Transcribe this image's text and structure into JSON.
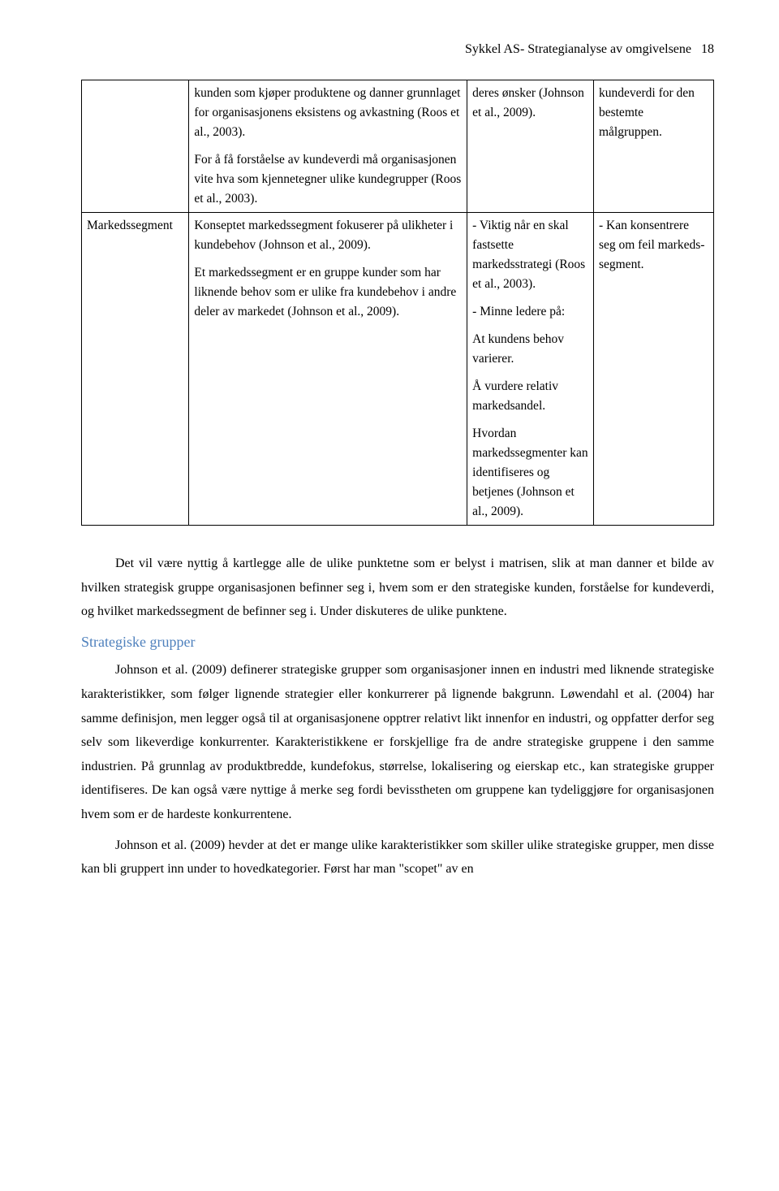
{
  "header": {
    "running_title": "Sykkel AS- Strategianalyse av omgivelsene",
    "page_number": "18"
  },
  "table": {
    "row1": {
      "col_a": "",
      "col_b_p1": "kunden som kjøper produktene og danner grunnlaget for organisasjonens eksistens og avkastning (Roos et al., 2003).",
      "col_b_p2": "For å få forståelse av kundeverdi må organisasjonen vite hva som kjennetegner ulike kundegrupper (Roos et al., 2003).",
      "col_c": "deres ønsker (Johnson et al., 2009).",
      "col_d": "kundeverdi for den bestemte målgruppen."
    },
    "row2": {
      "col_a": "Markedssegment",
      "col_b_p1": "Konseptet markedssegment fokuserer på ulikheter i kundebehov (Johnson et al., 2009).",
      "col_b_p2": "Et markedssegment er en gruppe kunder som har liknende behov som er ulike fra kundebehov i andre deler av markedet (Johnson et al., 2009).",
      "col_c_p1": "- Viktig når en skal fastsette markedsstrategi (Roos et al., 2003).",
      "col_c_p2": "- Minne ledere på:",
      "col_c_p3": "At kundens behov varierer.",
      "col_c_p4": "Å vurdere relativ markedsandel.",
      "col_c_p5": "Hvordan markedssegmenter kan identifiseres og betjenes (Johnson et al., 2009).",
      "col_d": "- Kan konsentrere seg om feil markeds-segment."
    }
  },
  "body": {
    "p1": "Det vil være nyttig å kartlegge alle de ulike punktetne som er belyst i matrisen, slik at man danner et bilde av hvilken strategisk gruppe organisasjonen befinner seg i, hvem som er den strategiske kunden, forståelse for kundeverdi, og hvilket markedssegment de befinner seg i. Under diskuteres de ulike punktene.",
    "section_title": "Strategiske grupper",
    "p2": "Johnson et al. (2009) definerer strategiske grupper som organisasjoner innen en industri med liknende strategiske karakteristikker, som følger lignende strategier eller konkurrerer på lignende bakgrunn. Løwendahl et al. (2004) har samme definisjon, men legger også til at organisasjonene opptrer relativt likt innenfor en industri, og oppfatter derfor seg selv som likeverdige konkurrenter. Karakteristikkene er forskjellige fra de andre strategiske gruppene i den samme industrien. På grunnlag av produktbredde, kundefokus, størrelse, lokalisering og eierskap etc., kan strategiske grupper identifiseres. De kan også være nyttige å merke seg fordi bevisstheten om gruppene kan tydeliggjøre for organisasjonen hvem som er de hardeste konkurrentene.",
    "p3": "Johnson et al. (2009) hevder at det er mange ulike karakteristikker som skiller ulike strategiske grupper, men disse kan bli gruppert inn under to hovedkategorier. Først har man \"scopet\" av en"
  },
  "colors": {
    "section_title": "#4f81bd",
    "text": "#000000",
    "background": "#ffffff",
    "border": "#000000"
  }
}
